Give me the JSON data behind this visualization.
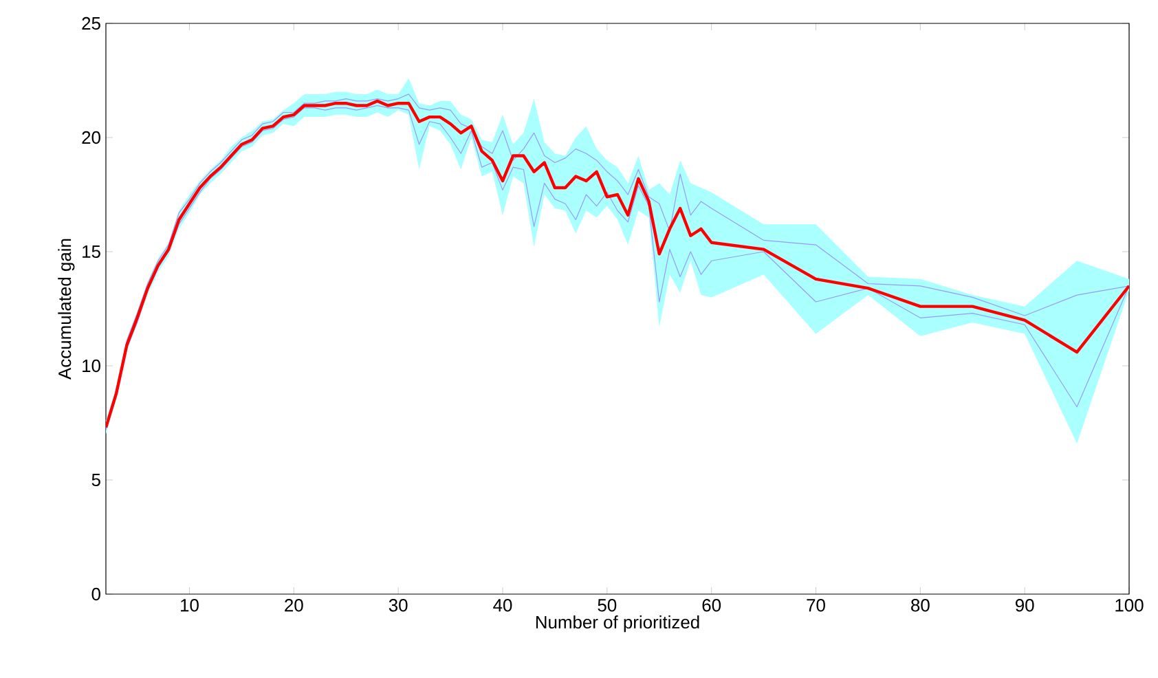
{
  "chart_data": {
    "type": "line",
    "xlabel": "Number of prioritized",
    "ylabel": "Accumulated gain",
    "x": [
      2,
      3,
      4,
      5,
      6,
      7,
      8,
      9,
      10,
      11,
      12,
      13,
      14,
      15,
      16,
      17,
      18,
      19,
      20,
      21,
      22,
      23,
      24,
      25,
      26,
      27,
      28,
      29,
      30,
      31,
      32,
      33,
      34,
      35,
      36,
      37,
      38,
      39,
      40,
      41,
      42,
      43,
      44,
      45,
      46,
      47,
      48,
      49,
      50,
      51,
      52,
      53,
      54,
      55,
      56,
      57,
      58,
      59,
      60,
      65,
      70,
      75,
      80,
      85,
      90,
      95,
      100
    ],
    "series": [
      {
        "color": "#9999ff",
        "values": [
          7.4,
          8.9,
          11.1,
          12.3,
          13.6,
          14.6,
          15.3,
          16.7,
          17.3,
          18.0,
          18.5,
          18.9,
          19.4,
          19.9,
          20.1,
          20.6,
          20.7,
          21.1,
          21.1,
          21.5,
          21.5,
          21.6,
          21.6,
          21.7,
          21.6,
          21.6,
          21.7,
          21.6,
          21.7,
          21.9,
          21.3,
          21.2,
          21.3,
          21.2,
          20.6,
          20.4,
          19.6,
          19.3,
          20.3,
          19.0,
          19.5,
          20.2,
          19.2,
          18.9,
          19.1,
          19.5,
          19.3,
          19.0,
          18.5,
          18.1,
          17.5,
          18.6,
          17.4,
          17.1,
          15.9,
          18.4,
          16.6,
          17.2,
          16.9,
          15.5,
          15.3,
          13.6,
          13.5,
          13.0,
          12.2,
          13.1,
          13.5
        ]
      },
      {
        "color": "#9999ff",
        "values": [
          7.2,
          8.7,
          10.8,
          11.9,
          13.3,
          14.3,
          15.0,
          16.2,
          16.9,
          17.6,
          18.2,
          18.6,
          19.1,
          19.6,
          19.8,
          20.3,
          20.4,
          20.8,
          20.9,
          21.3,
          21.3,
          21.2,
          21.3,
          21.3,
          21.2,
          21.3,
          21.4,
          21.3,
          21.3,
          21.2,
          19.7,
          20.7,
          20.6,
          20.0,
          19.3,
          20.3,
          18.7,
          18.9,
          17.7,
          18.7,
          18.6,
          16.1,
          18.0,
          17.3,
          17.1,
          16.4,
          17.5,
          17.0,
          17.6,
          16.8,
          16.3,
          17.9,
          17.0,
          12.8,
          15.1,
          13.9,
          15.0,
          14.0,
          14.6,
          15.0,
          12.8,
          13.4,
          12.1,
          12.3,
          11.8,
          8.2,
          13.5
        ]
      },
      {
        "color": "#ff0000",
        "values": [
          7.3,
          8.8,
          10.9,
          12.1,
          13.4,
          14.4,
          15.1,
          16.4,
          17.1,
          17.8,
          18.3,
          18.7,
          19.2,
          19.7,
          19.9,
          20.4,
          20.5,
          20.9,
          21.0,
          21.4,
          21.4,
          21.4,
          21.5,
          21.5,
          21.4,
          21.4,
          21.6,
          21.4,
          21.5,
          21.5,
          20.7,
          20.9,
          20.9,
          20.6,
          20.2,
          20.5,
          19.4,
          19.0,
          18.1,
          19.2,
          19.2,
          18.5,
          18.9,
          17.8,
          17.8,
          18.3,
          18.1,
          18.5,
          17.4,
          17.5,
          16.6,
          18.2,
          17.2,
          14.9,
          16.0,
          16.9,
          15.7,
          16.0,
          15.4,
          15.1,
          13.8,
          13.4,
          12.6,
          12.6,
          12.0,
          10.6,
          13.5
        ],
        "lower": [
          7.0,
          8.5,
          10.6,
          11.8,
          13.1,
          14.1,
          14.8,
          16.0,
          16.7,
          17.5,
          18.0,
          18.4,
          18.9,
          19.4,
          19.6,
          20.1,
          20.2,
          20.6,
          20.5,
          20.9,
          20.9,
          20.9,
          21.0,
          21.0,
          20.9,
          20.9,
          21.1,
          20.9,
          21.2,
          21.0,
          18.6,
          20.5,
          20.3,
          19.7,
          18.6,
          20.0,
          18.3,
          18.5,
          16.6,
          18.3,
          18.0,
          15.2,
          17.5,
          16.9,
          16.8,
          15.8,
          16.8,
          16.5,
          17.0,
          16.4,
          15.3,
          16.8,
          16.5,
          11.7,
          14.0,
          13.2,
          14.6,
          13.1,
          13.0,
          14.0,
          11.4,
          13.1,
          11.3,
          11.9,
          11.4,
          6.6,
          13.3
        ],
        "upper": [
          7.6,
          9.1,
          11.2,
          12.4,
          13.7,
          14.7,
          15.4,
          16.8,
          17.5,
          18.1,
          18.6,
          19.0,
          19.6,
          20.0,
          20.3,
          20.7,
          20.8,
          21.2,
          21.5,
          21.9,
          21.9,
          21.9,
          22.0,
          22.0,
          21.9,
          21.9,
          22.1,
          21.9,
          21.9,
          22.6,
          21.5,
          21.4,
          21.6,
          21.6,
          21.0,
          20.8,
          19.9,
          19.8,
          21.0,
          19.7,
          20.2,
          21.7,
          19.8,
          19.3,
          19.2,
          20.0,
          20.5,
          19.5,
          19.0,
          18.7,
          18.0,
          19.2,
          17.7,
          18.0,
          17.5,
          19.0,
          18.0,
          17.8,
          17.6,
          16.2,
          16.2,
          13.9,
          13.8,
          13.1,
          12.6,
          14.6,
          13.8
        ]
      }
    ],
    "xlim": [
      2,
      100
    ],
    "ylim": [
      0,
      25
    ],
    "xticks": [
      10,
      20,
      30,
      40,
      50,
      60,
      70,
      80,
      90,
      100
    ],
    "yticks": [
      0,
      5,
      10,
      15,
      20,
      25
    ],
    "grid": false,
    "marker": "none",
    "line_style": "solid"
  }
}
